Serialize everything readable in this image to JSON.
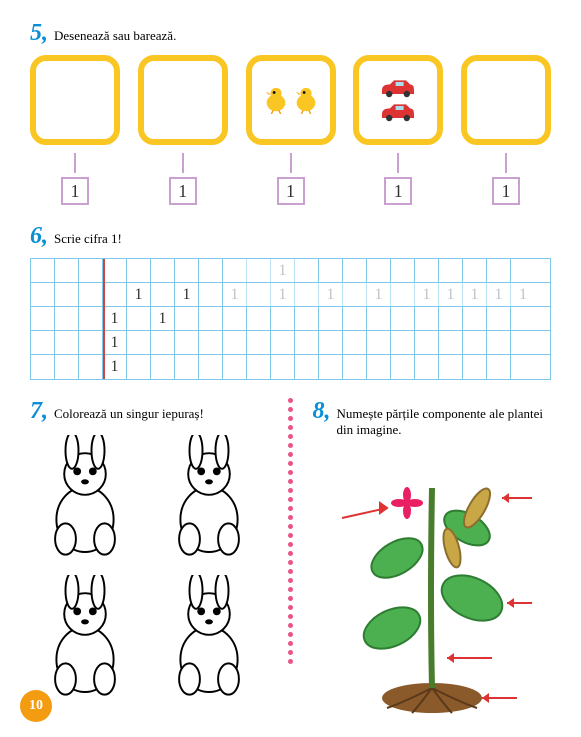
{
  "ex5": {
    "num": "5,",
    "text": "Desenează sau barează."
  },
  "ex6": {
    "num": "6,",
    "text": "Scrie cifra 1!"
  },
  "ex7": {
    "num": "7,",
    "text": "Colorează un singur iepuraș!"
  },
  "ex8": {
    "num": "8,",
    "text": "Numește părțile componente ale plantei din imagine."
  },
  "boxes": [
    {
      "content": "empty"
    },
    {
      "content": "empty"
    },
    {
      "content": "chicks",
      "count": 2
    },
    {
      "content": "cars",
      "count": 2
    },
    {
      "content": "empty"
    }
  ],
  "numLabels": [
    "1",
    "1",
    "1",
    "1",
    "1"
  ],
  "gridRows": [
    [
      "",
      "",
      "",
      "",
      "",
      "",
      "",
      "",
      "",
      "",
      "1",
      "",
      "",
      "",
      "",
      "",
      "",
      "",
      "",
      "",
      ""
    ],
    [
      "",
      "",
      "",
      "",
      "1",
      "",
      "1",
      "",
      "1",
      "",
      "1",
      "",
      "1",
      "",
      "1",
      "",
      "1",
      "1",
      "1",
      "1",
      "1"
    ],
    [
      "",
      "",
      "",
      "1",
      "",
      "1",
      "",
      "",
      "",
      "",
      "",
      "",
      "",
      "",
      "",
      "",
      "",
      "",
      "",
      "",
      ""
    ],
    [
      "",
      "",
      "",
      "1",
      "",
      "",
      "",
      "",
      "",
      "",
      "",
      "",
      "",
      "",
      "",
      "",
      "",
      "",
      "",
      "",
      ""
    ],
    [
      "",
      "",
      "",
      "1",
      "",
      "",
      "",
      "",
      "",
      "",
      "",
      "",
      "",
      "",
      "",
      "",
      "",
      "",
      "",
      "",
      ""
    ]
  ],
  "gridDotted": [
    [
      0,
      8
    ],
    [
      0,
      9
    ],
    [
      0,
      10
    ],
    [
      1,
      8
    ],
    [
      1,
      9
    ],
    [
      1,
      10
    ],
    [
      1,
      11
    ],
    [
      1,
      12
    ],
    [
      1,
      13
    ],
    [
      1,
      14
    ],
    [
      1,
      15
    ],
    [
      1,
      16
    ],
    [
      1,
      17
    ],
    [
      1,
      18
    ],
    [
      1,
      19
    ],
    [
      1,
      20
    ]
  ],
  "pageNum": "10",
  "colors": {
    "yellowBox": "#f9c623",
    "blueNum": "#0a8fd6",
    "gridLine": "#7ec8e8",
    "purpleBox": "#c9a0d0",
    "pinkDot": "#e8548a",
    "orange": "#f39c12",
    "redArrow": "#d33"
  }
}
